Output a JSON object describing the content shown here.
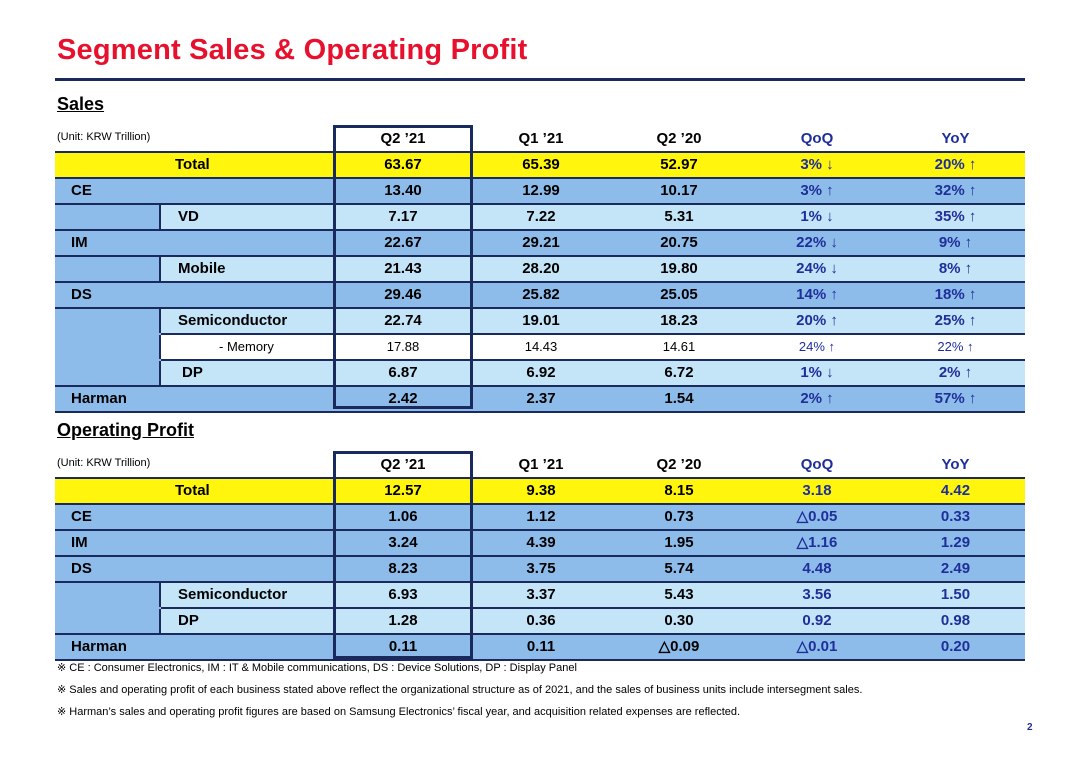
{
  "title": "Segment Sales & Operating Profit",
  "colors": {
    "title": "#e8112d",
    "total_row": "#fff50d",
    "segment_row": "#8ebcea",
    "sub_row": "#c4e4f8",
    "blue_text": "#1f2f9a",
    "rule": "#1a2a5c"
  },
  "sales": {
    "heading": "Sales",
    "unit": "(Unit: KRW Trillion)",
    "columns": [
      "Q2 ’21",
      "Q1 ’21",
      "Q2 ’20",
      "QoQ",
      "YoY"
    ],
    "rows": [
      {
        "label": "Total",
        "values": [
          "63.67",
          "65.39",
          "52.97",
          "3% ↓",
          "20% ↑"
        ]
      },
      {
        "label": "CE",
        "values": [
          "13.40",
          "12.99",
          "10.17",
          "3% ↑",
          "32% ↑"
        ]
      },
      {
        "label": "VD",
        "values": [
          "7.17",
          "7.22",
          "5.31",
          "1% ↓",
          "35% ↑"
        ]
      },
      {
        "label": "IM",
        "values": [
          "22.67",
          "29.21",
          "20.75",
          "22% ↓",
          "9% ↑"
        ]
      },
      {
        "label": "Mobile",
        "values": [
          "21.43",
          "28.20",
          "19.80",
          "24% ↓",
          "8% ↑"
        ]
      },
      {
        "label": "DS",
        "values": [
          "29.46",
          "25.82",
          "25.05",
          "14% ↑",
          "18% ↑"
        ]
      },
      {
        "label": "Semiconductor",
        "values": [
          "22.74",
          "19.01",
          "18.23",
          "20% ↑",
          "25% ↑"
        ]
      },
      {
        "label": "- Memory",
        "values": [
          "17.88",
          "14.43",
          "14.61",
          "24% ↑",
          "22% ↑"
        ]
      },
      {
        "label": "DP",
        "values": [
          "6.87",
          "6.92",
          "6.72",
          "1% ↓",
          "2% ↑"
        ]
      },
      {
        "label": "Harman",
        "values": [
          "2.42",
          "2.37",
          "1.54",
          "2% ↑",
          "57% ↑"
        ]
      }
    ]
  },
  "op": {
    "heading": "Operating Profit",
    "unit": "(Unit: KRW Trillion)",
    "columns": [
      "Q2 ’21",
      "Q1 ’21",
      "Q2 ’20",
      "QoQ",
      "YoY"
    ],
    "rows": [
      {
        "label": "Total",
        "values": [
          "12.57",
          "9.38",
          "8.15",
          "3.18",
          "4.42"
        ]
      },
      {
        "label": "CE",
        "values": [
          "1.06",
          "1.12",
          "0.73",
          "△0.05",
          "0.33"
        ]
      },
      {
        "label": "IM",
        "values": [
          "3.24",
          "4.39",
          "1.95",
          "△1.16",
          "1.29"
        ]
      },
      {
        "label": "DS",
        "values": [
          "8.23",
          "3.75",
          "5.74",
          "4.48",
          "2.49"
        ]
      },
      {
        "label": "Semiconductor",
        "values": [
          "6.93",
          "3.37",
          "5.43",
          "3.56",
          "1.50"
        ]
      },
      {
        "label": "DP",
        "values": [
          "1.28",
          "0.36",
          "0.30",
          "0.92",
          "0.98"
        ]
      },
      {
        "label": "Harman",
        "values": [
          "0.11",
          "0.11",
          "△0.09",
          "△0.01",
          "0.20"
        ]
      }
    ]
  },
  "notes": [
    "※ CE : Consumer Electronics,  IM : IT & Mobile communications,  DS : Device Solutions,  DP : Display Panel",
    "※ Sales and operating profit of each business stated above reflect the organizational structure  as of 2021, and the sales of business units include intersegment sales.",
    "※ Harman’s sales and operating profit figures are based on Samsung Electronics’ fiscal year, and acquisition related expenses are reflected."
  ],
  "page_number": "2"
}
